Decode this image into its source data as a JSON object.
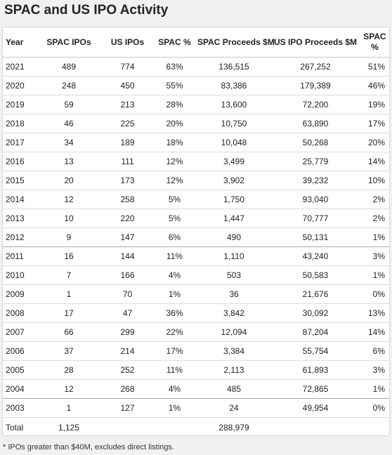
{
  "title": "SPAC and US IPO Activity",
  "columns": {
    "year": "Year",
    "spac_ipos": "SPAC IPOs",
    "us_ipos": "US IPOs",
    "spac_pct": "SPAC %",
    "spac_proceeds": "SPAC Proceeds $M",
    "us_ipo_proceeds": "US IPO Proceeds $M",
    "spac_proceeds_pct_line1": "SPAC",
    "spac_proceeds_pct_line2": "%"
  },
  "rows": [
    {
      "year": "2021",
      "spac_ipos": "489",
      "us_ipos": "774",
      "spac_pct": "63%",
      "spac_proceeds": "136,515",
      "us_ipo_proceeds": "267,252",
      "proceeds_pct": "51%"
    },
    {
      "year": "2020",
      "spac_ipos": "248",
      "us_ipos": "450",
      "spac_pct": "55%",
      "spac_proceeds": "83,386",
      "us_ipo_proceeds": "179,389",
      "proceeds_pct": "46%"
    },
    {
      "year": "2019",
      "spac_ipos": "59",
      "us_ipos": "213",
      "spac_pct": "28%",
      "spac_proceeds": "13,600",
      "us_ipo_proceeds": "72,200",
      "proceeds_pct": "19%"
    },
    {
      "year": "2018",
      "spac_ipos": "46",
      "us_ipos": "225",
      "spac_pct": "20%",
      "spac_proceeds": "10,750",
      "us_ipo_proceeds": "63,890",
      "proceeds_pct": "17%"
    },
    {
      "year": "2017",
      "spac_ipos": "34",
      "us_ipos": "189",
      "spac_pct": "18%",
      "spac_proceeds": "10,048",
      "us_ipo_proceeds": "50,268",
      "proceeds_pct": "20%"
    },
    {
      "year": "2016",
      "spac_ipos": "13",
      "us_ipos": "111",
      "spac_pct": "12%",
      "spac_proceeds": "3,499",
      "us_ipo_proceeds": "25,779",
      "proceeds_pct": "14%"
    },
    {
      "year": "2015",
      "spac_ipos": "20",
      "us_ipos": "173",
      "spac_pct": "12%",
      "spac_proceeds": "3,902",
      "us_ipo_proceeds": "39,232",
      "proceeds_pct": "10%"
    },
    {
      "year": "2014",
      "spac_ipos": "12",
      "us_ipos": "258",
      "spac_pct": "5%",
      "spac_proceeds": "1,750",
      "us_ipo_proceeds": "93,040",
      "proceeds_pct": "2%"
    },
    {
      "year": "2013",
      "spac_ipos": "10",
      "us_ipos": "220",
      "spac_pct": "5%",
      "spac_proceeds": "1,447",
      "us_ipo_proceeds": "70,777",
      "proceeds_pct": "2%"
    },
    {
      "year": "2012",
      "spac_ipos": "9",
      "us_ipos": "147",
      "spac_pct": "6%",
      "spac_proceeds": "490",
      "us_ipo_proceeds": "50,131",
      "proceeds_pct": "1%"
    },
    {
      "year": "2011",
      "spac_ipos": "16",
      "us_ipos": "144",
      "spac_pct": "11%",
      "spac_proceeds": "1,110",
      "us_ipo_proceeds": "43,240",
      "proceeds_pct": "3%"
    },
    {
      "year": "2010",
      "spac_ipos": "7",
      "us_ipos": "166",
      "spac_pct": "4%",
      "spac_proceeds": "503",
      "us_ipo_proceeds": "50,583",
      "proceeds_pct": "1%"
    },
    {
      "year": "2009",
      "spac_ipos": "1",
      "us_ipos": "70",
      "spac_pct": "1%",
      "spac_proceeds": "36",
      "us_ipo_proceeds": "21,676",
      "proceeds_pct": "0%"
    },
    {
      "year": "2008",
      "spac_ipos": "17",
      "us_ipos": "47",
      "spac_pct": "36%",
      "spac_proceeds": "3,842",
      "us_ipo_proceeds": "30,092",
      "proceeds_pct": "13%"
    },
    {
      "year": "2007",
      "spac_ipos": "66",
      "us_ipos": "299",
      "spac_pct": "22%",
      "spac_proceeds": "12,094",
      "us_ipo_proceeds": "87,204",
      "proceeds_pct": "14%"
    },
    {
      "year": "2006",
      "spac_ipos": "37",
      "us_ipos": "214",
      "spac_pct": "17%",
      "spac_proceeds": "3,384",
      "us_ipo_proceeds": "55,754",
      "proceeds_pct": "6%"
    },
    {
      "year": "2005",
      "spac_ipos": "28",
      "us_ipos": "252",
      "spac_pct": "11%",
      "spac_proceeds": "2,113",
      "us_ipo_proceeds": "61,893",
      "proceeds_pct": "3%"
    },
    {
      "year": "2004",
      "spac_ipos": "12",
      "us_ipos": "268",
      "spac_pct": "4%",
      "spac_proceeds": "485",
      "us_ipo_proceeds": "72,865",
      "proceeds_pct": "1%"
    },
    {
      "year": "2003",
      "spac_ipos": "1",
      "us_ipos": "127",
      "spac_pct": "1%",
      "spac_proceeds": "24",
      "us_ipo_proceeds": "49,954",
      "proceeds_pct": "0%"
    }
  ],
  "total": {
    "label": "Total",
    "spac_ipos": "1,125",
    "spac_proceeds": "288,979"
  },
  "footnote": "* IPOs greater than $40M, excludes direct listings."
}
